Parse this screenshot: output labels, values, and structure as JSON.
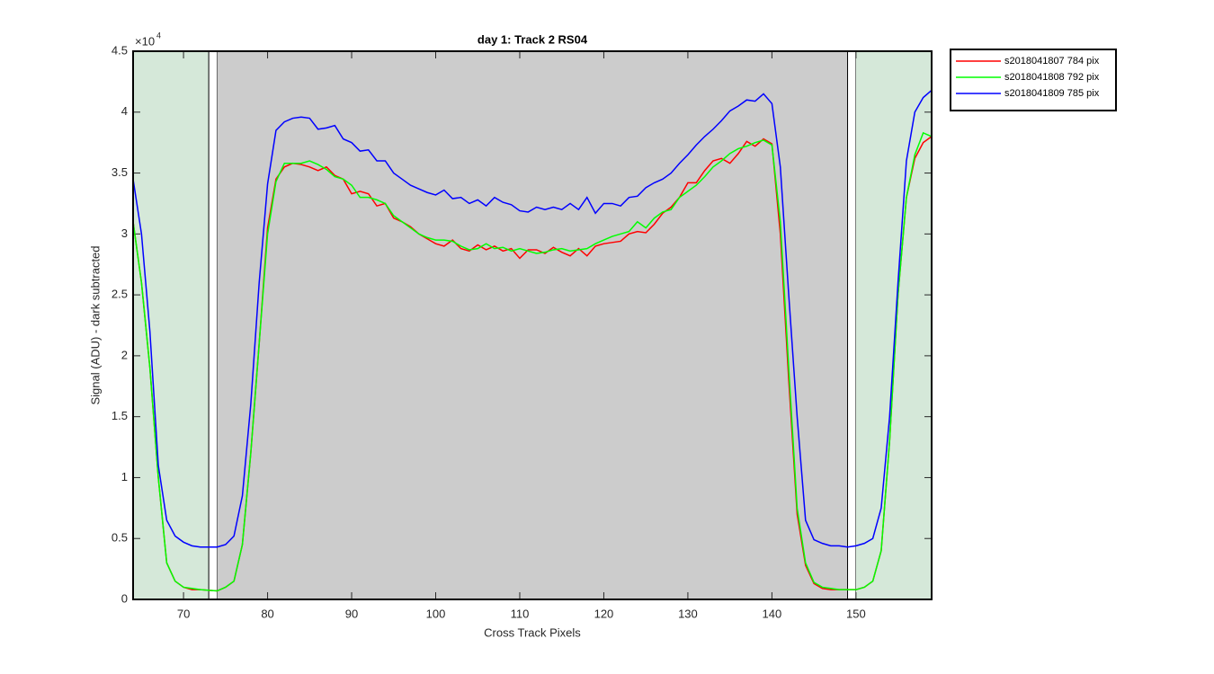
{
  "chart_data": {
    "type": "line",
    "title": "day 1: Track 2  RS04",
    "x_label": "Cross Track Pixels",
    "y_label": "Signal (ADU) - dark subtracted",
    "y_exponent": {
      "base": "×10",
      "power": "4"
    },
    "xlim": [
      64,
      159
    ],
    "xticks": [
      70,
      80,
      90,
      100,
      110,
      120,
      130,
      140,
      150
    ],
    "ylim": [
      0,
      4.5
    ],
    "yticks": [
      0,
      0.5,
      1,
      1.5,
      2,
      2.5,
      3,
      3.5,
      4,
      4.5
    ],
    "legend": "northeastoutside",
    "regions": [
      {
        "x0": 64,
        "x1": 73,
        "color": "#d5e8d9"
      },
      {
        "x0": 73,
        "x1": 74,
        "color": "#ffffff",
        "edgecolor": "#000000"
      },
      {
        "x0": 74,
        "x1": 149,
        "color": "#cccccc"
      },
      {
        "x0": 149,
        "x1": 150,
        "color": "#ffffff",
        "edgecolor": "#000000"
      },
      {
        "x0": 150,
        "x1": 159,
        "color": "#d5e8d9"
      }
    ],
    "x": [
      64,
      65,
      66,
      67,
      68,
      69,
      70,
      71,
      72,
      73,
      74,
      75,
      76,
      77,
      78,
      79,
      80,
      81,
      82,
      83,
      84,
      85,
      86,
      87,
      88,
      89,
      90,
      91,
      92,
      93,
      94,
      95,
      96,
      97,
      98,
      99,
      100,
      101,
      102,
      103,
      104,
      105,
      106,
      107,
      108,
      109,
      110,
      111,
      112,
      113,
      114,
      115,
      116,
      117,
      118,
      119,
      120,
      121,
      122,
      123,
      124,
      125,
      126,
      127,
      128,
      129,
      130,
      131,
      132,
      133,
      134,
      135,
      136,
      137,
      138,
      139,
      140,
      141,
      142,
      143,
      144,
      145,
      146,
      147,
      148,
      149,
      150,
      151,
      152,
      153,
      154,
      155,
      156,
      157,
      158,
      159
    ],
    "series": [
      {
        "name": "s2018041807 784 pix",
        "color": "#ff0000",
        "values": [
          3.1,
          2.6,
          1.9,
          1.0,
          0.3,
          0.15,
          0.1,
          0.08,
          0.08,
          0.075,
          0.07,
          0.1,
          0.15,
          0.45,
          1.2,
          2.1,
          3.05,
          3.45,
          3.55,
          3.58,
          3.57,
          3.55,
          3.52,
          3.55,
          3.48,
          3.45,
          3.33,
          3.35,
          3.33,
          3.23,
          3.25,
          3.13,
          3.1,
          3.06,
          3.0,
          2.96,
          2.92,
          2.9,
          2.95,
          2.88,
          2.86,
          2.91,
          2.87,
          2.9,
          2.86,
          2.88,
          2.8,
          2.87,
          2.87,
          2.84,
          2.89,
          2.85,
          2.82,
          2.88,
          2.82,
          2.9,
          2.92,
          2.93,
          2.94,
          3.0,
          3.02,
          3.01,
          3.08,
          3.17,
          3.22,
          3.3,
          3.42,
          3.42,
          3.52,
          3.6,
          3.62,
          3.58,
          3.66,
          3.76,
          3.72,
          3.78,
          3.74,
          3.0,
          1.8,
          0.7,
          0.28,
          0.13,
          0.09,
          0.08,
          0.08,
          0.08,
          0.08,
          0.1,
          0.15,
          0.4,
          1.3,
          2.5,
          3.3,
          3.62,
          3.75,
          3.8
        ]
      },
      {
        "name": "s2018041808 792 pix",
        "color": "#00ff00",
        "values": [
          3.1,
          2.6,
          1.9,
          1.0,
          0.3,
          0.15,
          0.1,
          0.09,
          0.08,
          0.075,
          0.07,
          0.1,
          0.15,
          0.45,
          1.2,
          2.1,
          3.0,
          3.43,
          3.58,
          3.58,
          3.58,
          3.6,
          3.57,
          3.53,
          3.47,
          3.45,
          3.4,
          3.3,
          3.3,
          3.28,
          3.25,
          3.15,
          3.1,
          3.05,
          3.0,
          2.97,
          2.95,
          2.95,
          2.94,
          2.9,
          2.87,
          2.88,
          2.92,
          2.88,
          2.89,
          2.86,
          2.88,
          2.86,
          2.84,
          2.85,
          2.87,
          2.88,
          2.86,
          2.87,
          2.88,
          2.92,
          2.95,
          2.98,
          3.0,
          3.02,
          3.1,
          3.05,
          3.13,
          3.18,
          3.2,
          3.3,
          3.35,
          3.4,
          3.47,
          3.55,
          3.6,
          3.66,
          3.7,
          3.72,
          3.75,
          3.77,
          3.73,
          3.1,
          1.9,
          0.75,
          0.3,
          0.14,
          0.1,
          0.09,
          0.08,
          0.08,
          0.08,
          0.1,
          0.15,
          0.4,
          1.3,
          2.5,
          3.3,
          3.65,
          3.83,
          3.8
        ]
      },
      {
        "name": "s2018041809 785 pix",
        "color": "#0000ff",
        "values": [
          3.45,
          3.0,
          2.2,
          1.1,
          0.65,
          0.52,
          0.47,
          0.44,
          0.43,
          0.43,
          0.43,
          0.45,
          0.52,
          0.85,
          1.6,
          2.6,
          3.41,
          3.85,
          3.92,
          3.95,
          3.96,
          3.95,
          3.86,
          3.87,
          3.89,
          3.78,
          3.75,
          3.68,
          3.69,
          3.6,
          3.6,
          3.5,
          3.45,
          3.4,
          3.37,
          3.34,
          3.32,
          3.36,
          3.29,
          3.3,
          3.25,
          3.28,
          3.23,
          3.3,
          3.26,
          3.24,
          3.19,
          3.18,
          3.22,
          3.2,
          3.22,
          3.2,
          3.25,
          3.2,
          3.3,
          3.17,
          3.25,
          3.25,
          3.23,
          3.3,
          3.31,
          3.38,
          3.42,
          3.45,
          3.5,
          3.58,
          3.65,
          3.73,
          3.8,
          3.86,
          3.93,
          4.01,
          4.05,
          4.1,
          4.09,
          4.15,
          4.07,
          3.55,
          2.5,
          1.5,
          0.65,
          0.49,
          0.46,
          0.44,
          0.44,
          0.43,
          0.44,
          0.46,
          0.5,
          0.75,
          1.5,
          2.6,
          3.6,
          4.0,
          4.12,
          4.18
        ]
      }
    ]
  }
}
